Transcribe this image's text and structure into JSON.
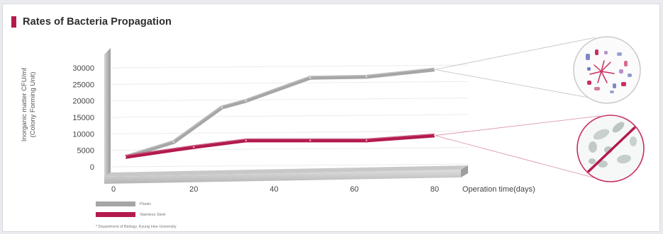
{
  "header": {
    "title": "Rates of Bacteria Propagation",
    "accent_color": "#b31a4e"
  },
  "chart_data": {
    "type": "line",
    "title": "Rates of Bacteria Propagation",
    "ylabel_line1": "Inorganic matter CFU/mℓ",
    "ylabel_line2": "(Colony Forming Unit)",
    "xlabel": "Operation time(days)",
    "x_ticks": [
      "0",
      "20",
      "40",
      "60",
      "80"
    ],
    "y_ticks": [
      "0",
      "5000",
      "10000",
      "15000",
      "20000",
      "25000",
      "30000"
    ],
    "xlim": [
      0,
      80
    ],
    "ylim": [
      0,
      30000
    ],
    "grid": true,
    "legend_position": "bottom-left",
    "series": [
      {
        "name": "Plastic",
        "color": "#a6a6a6",
        "x": [
          3,
          15,
          27,
          33,
          49,
          63,
          80
        ],
        "y": [
          3000,
          7500,
          18000,
          20000,
          27000,
          27300,
          29500
        ]
      },
      {
        "name": "Stainless Steel",
        "color": "#b31a4e",
        "x": [
          3,
          20,
          33,
          49,
          63,
          80
        ],
        "y": [
          3000,
          6000,
          8000,
          8000,
          8000,
          9500
        ]
      }
    ]
  },
  "footnote": "* Department of Biology, Kyung Hee University"
}
